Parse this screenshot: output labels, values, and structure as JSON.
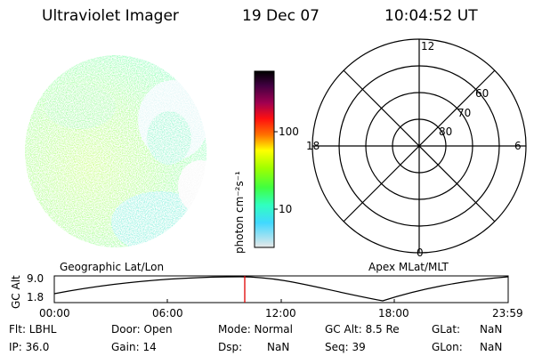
{
  "header": {
    "instrument": "Ultraviolet Imager",
    "date": "19 Dec 07",
    "time": "10:04:52 UT"
  },
  "colorbar": {
    "unit_label": "photon cm⁻²s⁻¹",
    "ticks": [
      "100",
      "10"
    ],
    "colors": [
      "#000000",
      "#3a003a",
      "#700060",
      "#b00030",
      "#e00020",
      "#ff2000",
      "#ff7000",
      "#ffb000",
      "#ffff00",
      "#c8ff00",
      "#80ff00",
      "#30ff50",
      "#30ffc0",
      "#40e0ff",
      "#a0ffff",
      "#e0e0e0"
    ]
  },
  "polar_plot": {
    "mlt_labels": {
      "top": "12",
      "left": "18",
      "right": "6",
      "bottom": "0"
    },
    "lat_labels": [
      "60",
      "70",
      "80"
    ]
  },
  "orbit_panel": {
    "left_label": "Geographic Lat/Lon",
    "right_label": "Apex MLat/MLT",
    "y_axis_label": "GC Alt",
    "y_ticks": [
      "9.0",
      "1.8"
    ],
    "x_ticks": [
      "00:00",
      "06:00",
      "12:00",
      "18:00",
      "23:59"
    ],
    "marker_time": "10:04:52",
    "marker_color": "#e00000"
  },
  "status": {
    "row1": {
      "flt": "Flt: LBHL",
      "door": "Door: Open",
      "mode": "Mode: Normal",
      "gc_alt": "GC Alt: 8.5 Re",
      "glat_label": "GLat:",
      "glat_value": "NaN"
    },
    "row2": {
      "ip": "IP: 36.0",
      "gain": "Gain: 14",
      "dsp_label": "Dsp:",
      "dsp_value": "NaN",
      "seq": "Seq: 39",
      "glon_label": "GLon:",
      "glon_value": "NaN"
    }
  }
}
